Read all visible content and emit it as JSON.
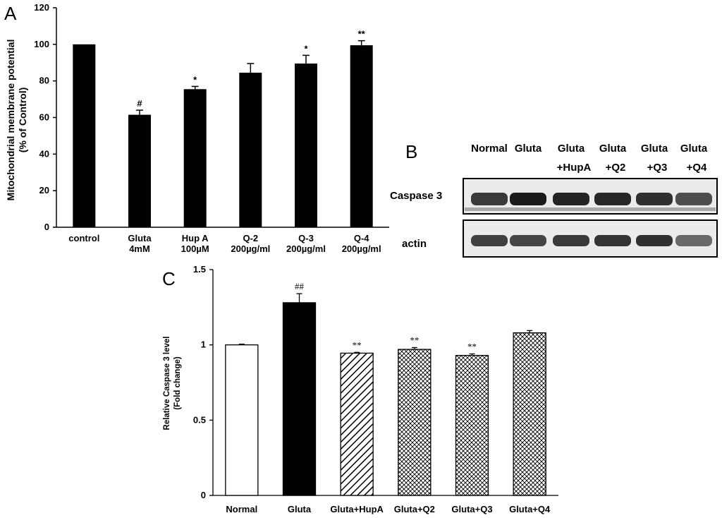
{
  "panel_a": {
    "letter": "A",
    "ylabel_line1": "Mitochondrial membrane potential",
    "ylabel_line2": "(% of Control)",
    "chart_data": {
      "type": "bar",
      "categories": [
        {
          "line1": "control",
          "line2": ""
        },
        {
          "line1": "Gluta",
          "line2": "4mM"
        },
        {
          "line1": "Hup A",
          "line2": "100µM"
        },
        {
          "line1": "Q-2",
          "line2": "200µg/ml"
        },
        {
          "line1": "Q-3",
          "line2": "200µg/ml"
        },
        {
          "line1": "Q-4",
          "line2": "200µg/ml"
        }
      ],
      "values": [
        100,
        61.5,
        75.5,
        84.5,
        89.5,
        99.5
      ],
      "errors": [
        0,
        2.5,
        1.5,
        5,
        4.5,
        2.5
      ],
      "annotations": [
        "",
        "#",
        "*",
        "",
        "*",
        "**"
      ],
      "ylim": [
        0,
        120
      ],
      "yticks": [
        0,
        20,
        40,
        60,
        80,
        100,
        120
      ],
      "colors": {
        "bar": "#000000"
      }
    }
  },
  "panel_b": {
    "letter": "B",
    "lanes": [
      {
        "line1": "Normal",
        "line2": ""
      },
      {
        "line1": "Gluta",
        "line2": ""
      },
      {
        "line1": "Gluta",
        "line2": "+HupA"
      },
      {
        "line1": "Gluta",
        "line2": "+Q2"
      },
      {
        "line1": "Gluta",
        "line2": "+Q3"
      },
      {
        "line1": "Gluta",
        "line2": "+Q4"
      }
    ],
    "rows": [
      {
        "label": "Caspase 3",
        "intensity": [
          0.82,
          0.96,
          0.92,
          0.9,
          0.86,
          0.72
        ]
      },
      {
        "label": "actin",
        "intensity": [
          0.78,
          0.76,
          0.82,
          0.84,
          0.86,
          0.6
        ]
      }
    ]
  },
  "panel_c": {
    "letter": "C",
    "ylabel_line1": "Relative Caspase 3 level",
    "ylabel_line2": "(Fold change)",
    "chart_data": {
      "type": "bar",
      "categories": [
        "Normal",
        "Gluta",
        "Gluta+HupA",
        "Gluta+Q2",
        "Gluta+Q3",
        "Gluta+Q4"
      ],
      "values": [
        1.0,
        1.28,
        0.945,
        0.97,
        0.93,
        1.08
      ],
      "errors": [
        0.005,
        0.06,
        0.005,
        0.012,
        0.01,
        0.015
      ],
      "annotations": [
        "",
        "##",
        "**",
        "**",
        "**",
        ""
      ],
      "fills": [
        "white",
        "black",
        "hatch-diag",
        "hatch-cross",
        "hatch-cross",
        "hatch-cross"
      ],
      "ylim": [
        0,
        1.5
      ],
      "yticks": [
        0,
        0.5,
        1,
        1.5
      ],
      "ytick_labels": [
        "0",
        "0.5",
        "1",
        "1.5"
      ]
    }
  }
}
